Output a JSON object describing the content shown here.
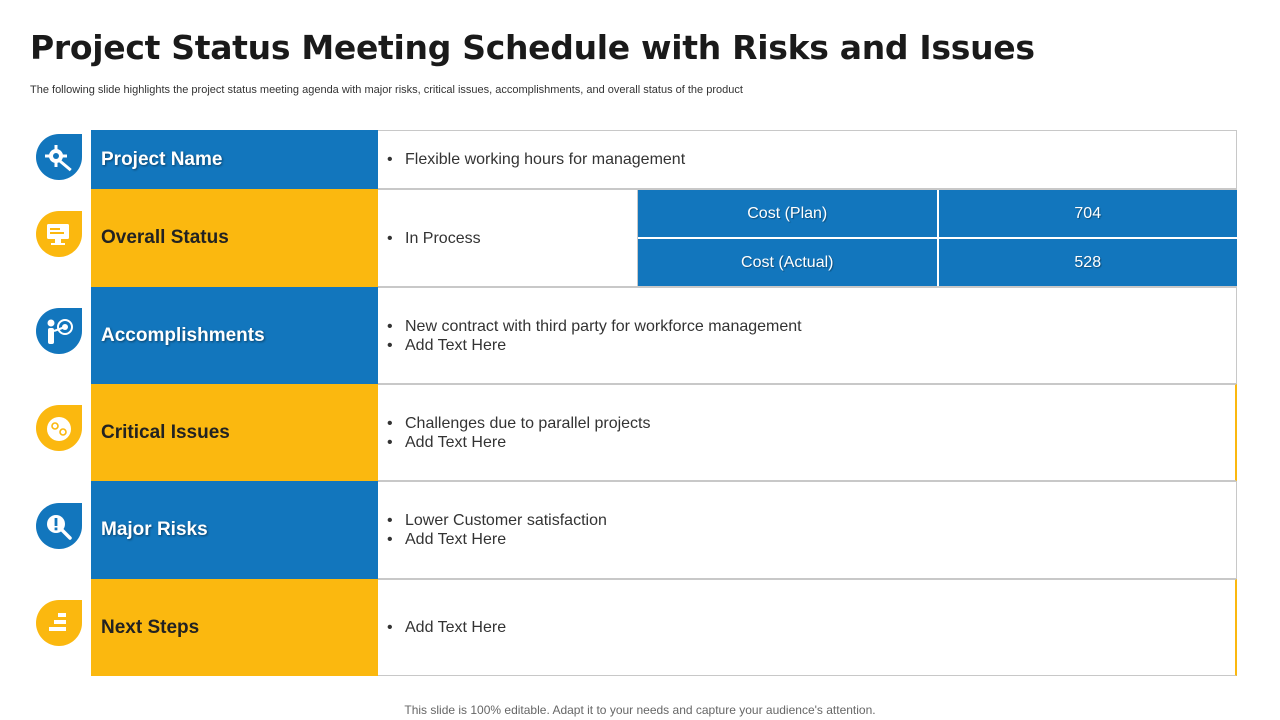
{
  "slide": {
    "title": "Project Status Meeting Schedule with Risks and Issues",
    "subtitle": "The following slide highlights the project status meeting agenda with major risks, critical issues, accomplishments, and overall status of the product",
    "footer": "This slide is 100% editable. Adapt it to your needs and capture your audience's attention."
  },
  "colors": {
    "blue": "#1276bd",
    "yellow": "#fbb80f",
    "border": "#c8c8c8"
  },
  "rows": {
    "project_name": {
      "label": "Project Name",
      "icon": "gear-wrench-icon",
      "items": [
        "Flexible working hours for management"
      ]
    },
    "overall_status": {
      "label": "Overall Status",
      "icon": "monitor-icon",
      "items": [
        "In Process"
      ]
    },
    "accomplishments": {
      "label": "Accomplishments",
      "icon": "target-person-icon",
      "items": [
        "New contract with third party for workforce management",
        "Add Text Here"
      ]
    },
    "critical_issues": {
      "label": "Critical Issues",
      "icon": "brain-gears-icon",
      "items": [
        "Challenges due to parallel projects",
        "Add Text Here"
      ]
    },
    "major_risks": {
      "label": "Major Risks",
      "icon": "alert-search-icon",
      "items": [
        "Lower Customer satisfaction",
        "Add Text Here"
      ]
    },
    "next_steps": {
      "label": "Next Steps",
      "icon": "steps-icon",
      "items": [
        "Add Text Here"
      ]
    }
  },
  "cost_table": {
    "rows": [
      {
        "label": "Cost (Plan)",
        "value": "704"
      },
      {
        "label": "Cost (Actual)",
        "value": "528"
      }
    ]
  }
}
